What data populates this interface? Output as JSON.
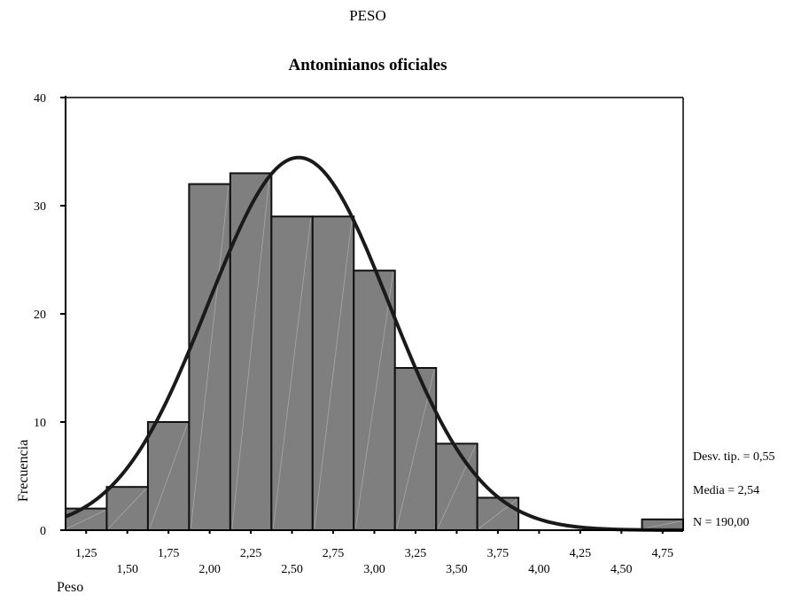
{
  "page_title": "PESO",
  "chart_data": {
    "type": "bar",
    "title": "Antoninianos oficiales",
    "xlabel": "Peso",
    "ylabel": "Frecuencia",
    "bin_width": 0.25,
    "bins": [
      {
        "center": 1.25,
        "count": 2
      },
      {
        "center": 1.5,
        "count": 4
      },
      {
        "center": 1.75,
        "count": 10
      },
      {
        "center": 2.0,
        "count": 32
      },
      {
        "center": 2.25,
        "count": 33
      },
      {
        "center": 2.5,
        "count": 29
      },
      {
        "center": 2.75,
        "count": 29
      },
      {
        "center": 3.0,
        "count": 24
      },
      {
        "center": 3.25,
        "count": 15
      },
      {
        "center": 3.5,
        "count": 8
      },
      {
        "center": 3.75,
        "count": 3
      },
      {
        "center": 4.0,
        "count": 0
      },
      {
        "center": 4.25,
        "count": 0
      },
      {
        "center": 4.5,
        "count": 0
      },
      {
        "center": 4.75,
        "count": 1
      }
    ],
    "x_tick_labels": [
      "1,25",
      "1,50",
      "1,75",
      "2,00",
      "2,25",
      "2,50",
      "2,75",
      "3,00",
      "3,25",
      "3,50",
      "3,75",
      "4,00",
      "4,25",
      "4,50",
      "4,75"
    ],
    "y_ticks": [
      0,
      10,
      20,
      30,
      40
    ],
    "ylim": [
      0,
      40
    ],
    "normal_curve": {
      "mean": 2.54,
      "sd": 0.55,
      "n": 190
    },
    "stats": {
      "sd_label": "Desv. tip. = 0,55",
      "mean_label": "Media = 2,54",
      "n_label": "N = 190,00"
    },
    "colors": {
      "bar_fill": "#7f7f7f",
      "bar_stroke": "#111111",
      "curve": "#1a1a1a"
    }
  }
}
